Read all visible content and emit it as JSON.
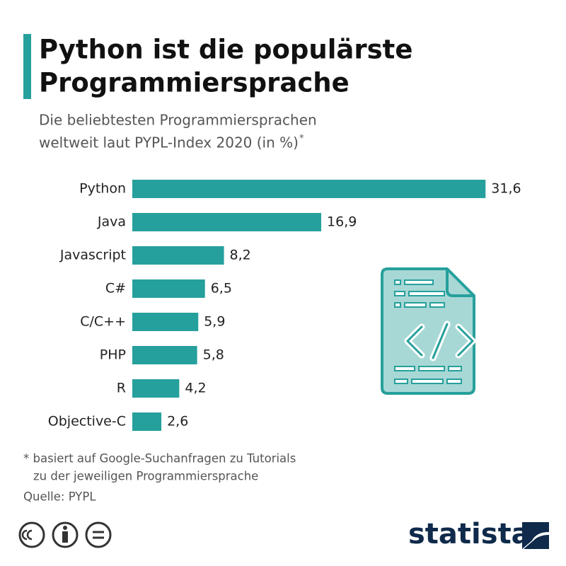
{
  "chart_data": {
    "type": "bar",
    "title": [
      "Python ist die populärste",
      "Programmiersprache"
    ],
    "subtitle": [
      "Die beliebtesten Programmiersprachen",
      "weltweit laut PYPL-Index 2020 (in %)"
    ],
    "subtitle_marker": "*",
    "categories": [
      "Python",
      "Java",
      "Javascript",
      "C#",
      "C/C++",
      "PHP",
      "R",
      "Objective-C"
    ],
    "values": [
      31.6,
      16.9,
      8.2,
      6.5,
      5.9,
      5.8,
      4.2,
      2.6
    ],
    "value_labels": [
      "31,6",
      "16,9",
      "8,2",
      "6,5",
      "5,9",
      "5,8",
      "4,2",
      "2,6"
    ],
    "color": "#26a09c",
    "footnote": [
      "* basiert auf Google-Suchanfragen zu Tutorials",
      "zu der jeweiligen Programmiersprache"
    ],
    "source": "Quelle: PYPL",
    "brand": "statista"
  }
}
